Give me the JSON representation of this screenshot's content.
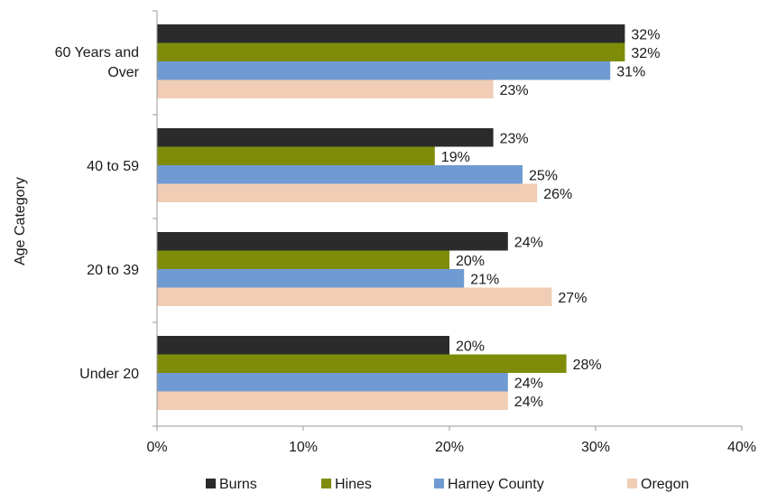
{
  "chart_data": {
    "type": "bar",
    "orientation": "horizontal",
    "categories": [
      "60 Years and Over",
      "40 to 59",
      "20 to 39",
      "Under 20"
    ],
    "category_lines": [
      [
        "60 Years and",
        "Over"
      ],
      [
        "40 to 59"
      ],
      [
        "20 to 39"
      ],
      [
        "Under 20"
      ]
    ],
    "series": [
      {
        "name": "Burns",
        "color": "#2b2b2b",
        "values": [
          32,
          23,
          24,
          20
        ],
        "labels": [
          "32%",
          "23%",
          "24%",
          "20%"
        ]
      },
      {
        "name": "Hines",
        "color": "#7f8c0a",
        "values": [
          32,
          19,
          20,
          28
        ],
        "labels": [
          "32%",
          "19%",
          "20%",
          "28%"
        ]
      },
      {
        "name": "Harney County",
        "color": "#6f9bd2",
        "values": [
          31,
          25,
          21,
          24
        ],
        "labels": [
          "31%",
          "25%",
          "21%",
          "24%"
        ]
      },
      {
        "name": "Oregon",
        "color": "#f0cdb4",
        "values": [
          23,
          26,
          27,
          24
        ],
        "labels": [
          "23%",
          "26%",
          "27%",
          "24%"
        ]
      }
    ],
    "xlim": [
      0,
      40
    ],
    "xticks": [
      0,
      10,
      20,
      30,
      40
    ],
    "xtick_labels": [
      "0%",
      "10%",
      "20%",
      "30%",
      "40%"
    ],
    "ylabel": "Age Category",
    "xlabel": "",
    "title": "",
    "grid": false,
    "legend_position": "bottom"
  }
}
